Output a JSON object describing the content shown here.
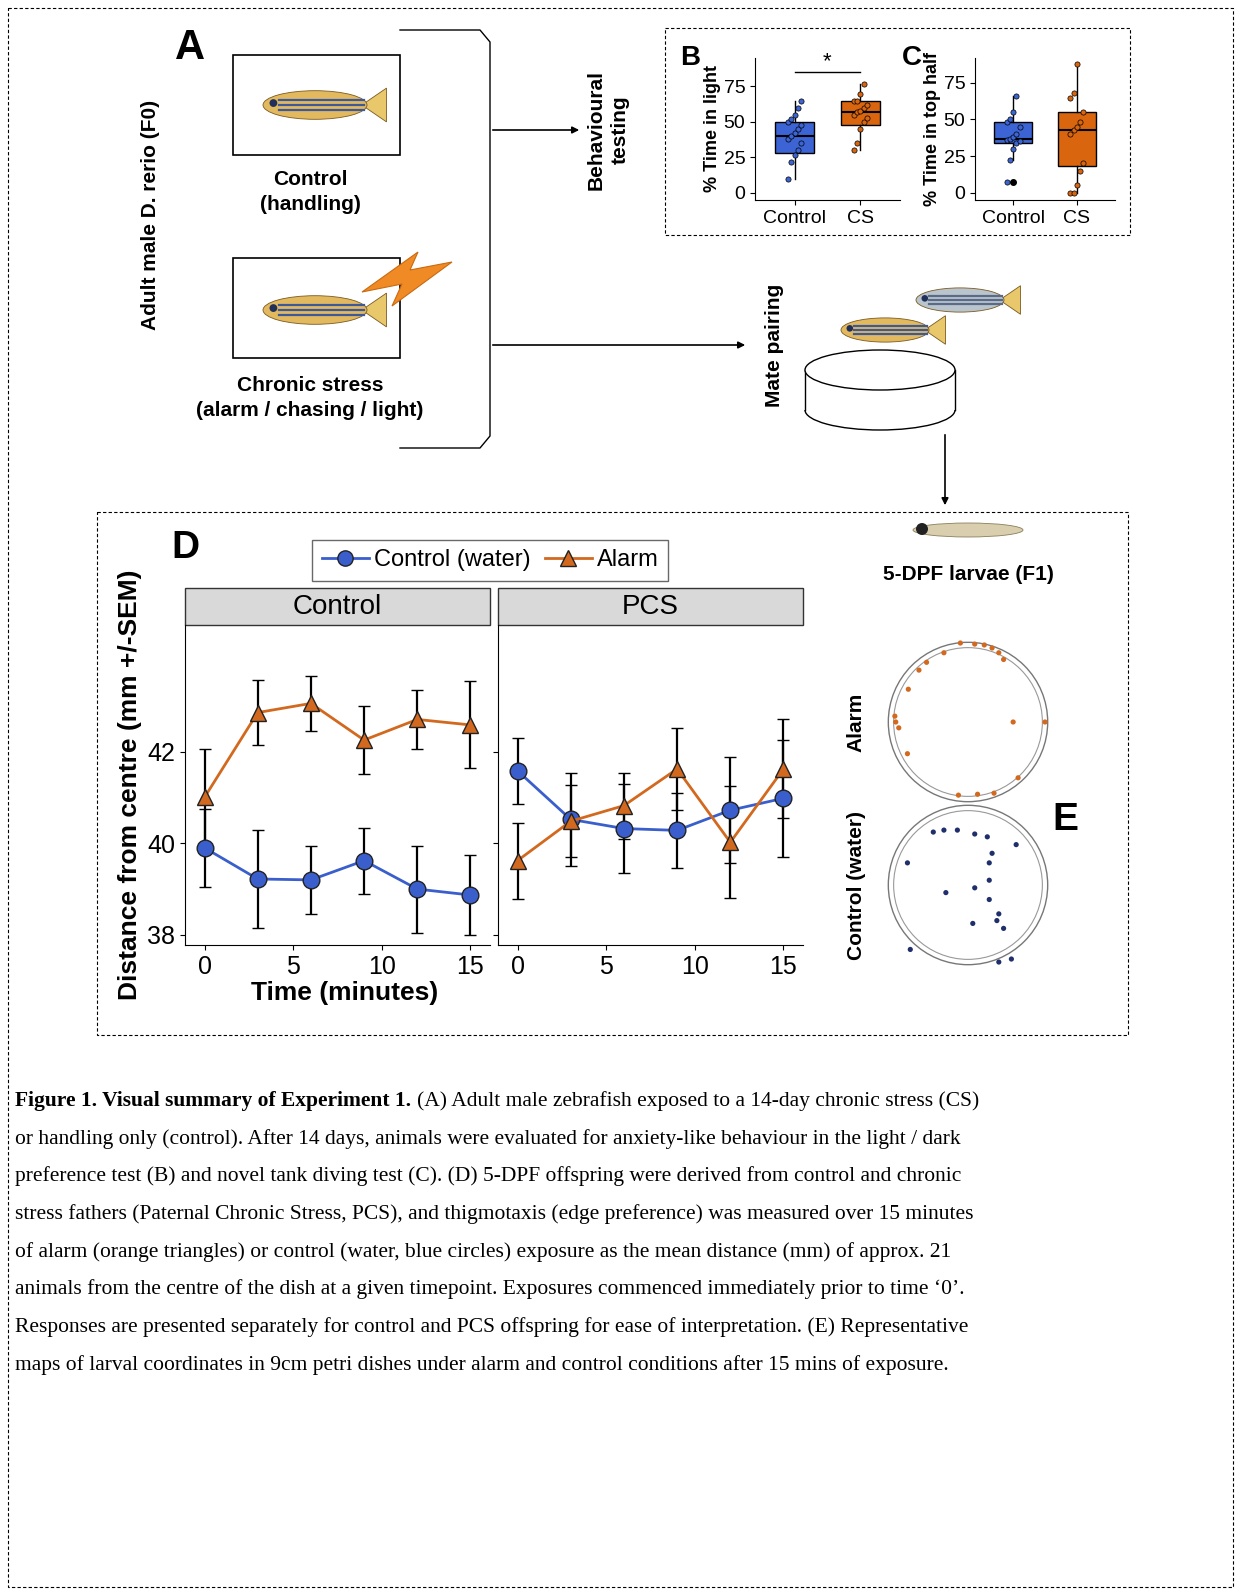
{
  "diagram": {
    "panel": "A",
    "subject": "Adult male D. rerio (F0)",
    "groups": [
      {
        "label": [
          "Control",
          "(handling)"
        ]
      },
      {
        "label": [
          "Chronic stress",
          "(alarm / chasing / light)"
        ]
      }
    ],
    "steps": [
      [
        "Behavioural",
        "testing"
      ],
      [
        "Mate pairing"
      ]
    ],
    "offspring": "5-DPF larvae (F1)"
  },
  "chart_data": [
    {
      "panel": "B",
      "type": "box",
      "ylabel": "% Time in light",
      "categories": [
        "Control",
        "CS"
      ],
      "colors": [
        "#3C64D4",
        "#D9650E"
      ],
      "boxes": [
        {
          "whislo": 10,
          "q1": 28,
          "med": 40,
          "q3": 50,
          "whishi": 65,
          "fliers": []
        },
        {
          "whislo": 30,
          "q1": 48,
          "med": 57,
          "q3": 65,
          "whishi": 77,
          "fliers": []
        }
      ],
      "points": [
        [
          10,
          22,
          27,
          30,
          35,
          38,
          40,
          42,
          45,
          48,
          50,
          52,
          55,
          60,
          65
        ],
        [
          30,
          35,
          45,
          50,
          53,
          55,
          57,
          58,
          60,
          62,
          65,
          65,
          70,
          77
        ]
      ],
      "ylim": [
        -5,
        95
      ],
      "yticks": [
        0,
        25,
        50,
        75
      ],
      "annotations": [
        {
          "text": "*",
          "y": 85,
          "from": 0,
          "to": 1
        }
      ]
    },
    {
      "panel": "C",
      "type": "box",
      "ylabel": "% Time in top half",
      "categories": [
        "Control",
        "CS"
      ],
      "colors": [
        "#3C64D4",
        "#D9650E"
      ],
      "boxes": [
        {
          "whislo": 22,
          "q1": 34,
          "med": 37,
          "q3": 48,
          "whishi": 66,
          "fliers": [
            7
          ]
        },
        {
          "whislo": 0,
          "q1": 18,
          "med": 43,
          "q3": 55,
          "whishi": 88,
          "fliers": []
        }
      ],
      "points": [
        [
          7,
          22,
          30,
          34,
          35,
          36,
          37,
          38,
          40,
          45,
          48,
          50,
          55,
          66
        ],
        [
          0,
          0,
          5,
          15,
          20,
          40,
          43,
          45,
          48,
          55,
          65,
          68,
          88
        ]
      ],
      "ylim": [
        -5,
        92
      ],
      "yticks": [
        0,
        25,
        50,
        75
      ]
    },
    {
      "panel": "D",
      "type": "line",
      "title": "Control",
      "ylabel": "Distance from centre (mm +/-SEM)",
      "xlabel": "Time (minutes)",
      "legend": "upper center",
      "x": [
        0,
        3,
        6,
        9,
        12,
        15
      ],
      "xlim": [
        -1.1,
        16.1
      ],
      "xticks": [
        0,
        5,
        10,
        15
      ],
      "ylim": [
        37.78,
        44.76
      ],
      "yticks": [
        38,
        40,
        42
      ],
      "series": [
        {
          "name": "Control (water)",
          "color": "#3A5FCD",
          "marker": "circle",
          "values": [
            39.9,
            39.22,
            39.2,
            39.62,
            39.0,
            38.87
          ],
          "errors": [
            0.85,
            1.07,
            0.75,
            0.72,
            0.95,
            0.87
          ]
        },
        {
          "name": "Alarm",
          "color": "#D2691E",
          "marker": "triangle",
          "values": [
            41.0,
            42.85,
            43.05,
            42.25,
            42.7,
            42.58
          ],
          "errors": [
            1.05,
            0.7,
            0.6,
            0.75,
            0.65,
            0.95
          ]
        }
      ]
    },
    {
      "type": "line",
      "title": "PCS",
      "tick_labels": "x",
      "x": [
        0,
        3,
        6,
        9,
        12,
        15
      ],
      "xlim": [
        -1.1,
        16.1
      ],
      "xticks": [
        0,
        5,
        10,
        15
      ],
      "ylim": [
        37.78,
        44.76
      ],
      "yticks": [
        38,
        40,
        42
      ],
      "series": [
        {
          "name": "Control (water)",
          "color": "#3A5FCD",
          "marker": "circle",
          "values": [
            41.58,
            40.52,
            40.32,
            40.28,
            40.72,
            40.98
          ],
          "errors": [
            0.72,
            1.02,
            0.97,
            0.82,
            1.15,
            1.27
          ]
        },
        {
          "name": "Alarm",
          "color": "#D2691E",
          "marker": "triangle",
          "values": [
            39.62,
            40.48,
            40.82,
            41.62,
            40.02,
            41.62
          ],
          "errors": [
            0.83,
            0.78,
            0.72,
            0.9,
            1.22,
            1.08
          ]
        }
      ]
    },
    {
      "type": "scatter",
      "title": "Alarm",
      "color": "#D2691E",
      "tick_labels": false,
      "xlim": [
        -48,
        48
      ],
      "ylim": [
        -48,
        48
      ],
      "x": [
        -4.3,
        3.8,
        9.2,
        13.6,
        17.4,
        20.1,
        -13.6,
        -23.4,
        -27.7,
        -33.7,
        -41.3,
        -40.8,
        -39.1,
        -34.2,
        43.5,
        28.3,
        5.4,
        -5.4,
        14.7,
        25.5
      ],
      "y": [
        44.6,
        44.0,
        43.5,
        41.8,
        39.1,
        35.3,
        39.1,
        33.7,
        29.3,
        18.5,
        3.3,
        0,
        -3.3,
        -17.9,
        0,
        -31.5,
        -40.8,
        -41.3,
        -40.2,
        0
      ]
    },
    {
      "panel": "E",
      "type": "scatter",
      "title": "Control (water)",
      "color": "#1F2F6B",
      "tick_labels": false,
      "xlim": [
        -48,
        48
      ],
      "ylim": [
        -48,
        48
      ],
      "x": [
        -19.6,
        -13.6,
        -6.0,
        3.8,
        10.9,
        13.6,
        27.2,
        -34.2,
        12.0,
        12.0,
        3.8,
        -12.5,
        12.0,
        17.4,
        16.3,
        20.1,
        2.7,
        17.4,
        24.5,
        -32.6
      ],
      "y": [
        29.9,
        31.0,
        31.0,
        28.8,
        27.2,
        17.9,
        22.8,
        12.5,
        12.5,
        2.7,
        -1.6,
        -4.3,
        -8.2,
        -16.3,
        -20.1,
        -24.5,
        -21.7,
        -43.5,
        -41.8,
        -36.4
      ]
    }
  ],
  "caption": {
    "title": "Figure 1. Visual summary of Experiment 1.",
    "lines": [
      "(A) Adult male zebrafish exposed to a 14-day chronic stress (CS)",
      "or handling only (control). After 14 days, animals were evaluated for anxiety-like behaviour in the light / dark",
      "preference test (B) and novel tank diving test (C). (D) 5-DPF offspring were derived from control and chronic",
      "stress fathers (Paternal Chronic Stress, PCS), and thigmotaxis (edge preference) was measured over 15 minutes",
      "of alarm (orange triangles) or control (water, blue circles) exposure as the mean distance (mm) of approx. 21",
      "animals from the centre of the dish at a given timepoint. Exposures commenced immediately prior to time ‘0’.",
      "Responses are presented separately for control and PCS offspring for ease of interpretation. (E) Representative",
      "maps of larval coordinates in 9cm petri dishes under alarm and control conditions after 15 mins of exposure."
    ]
  }
}
